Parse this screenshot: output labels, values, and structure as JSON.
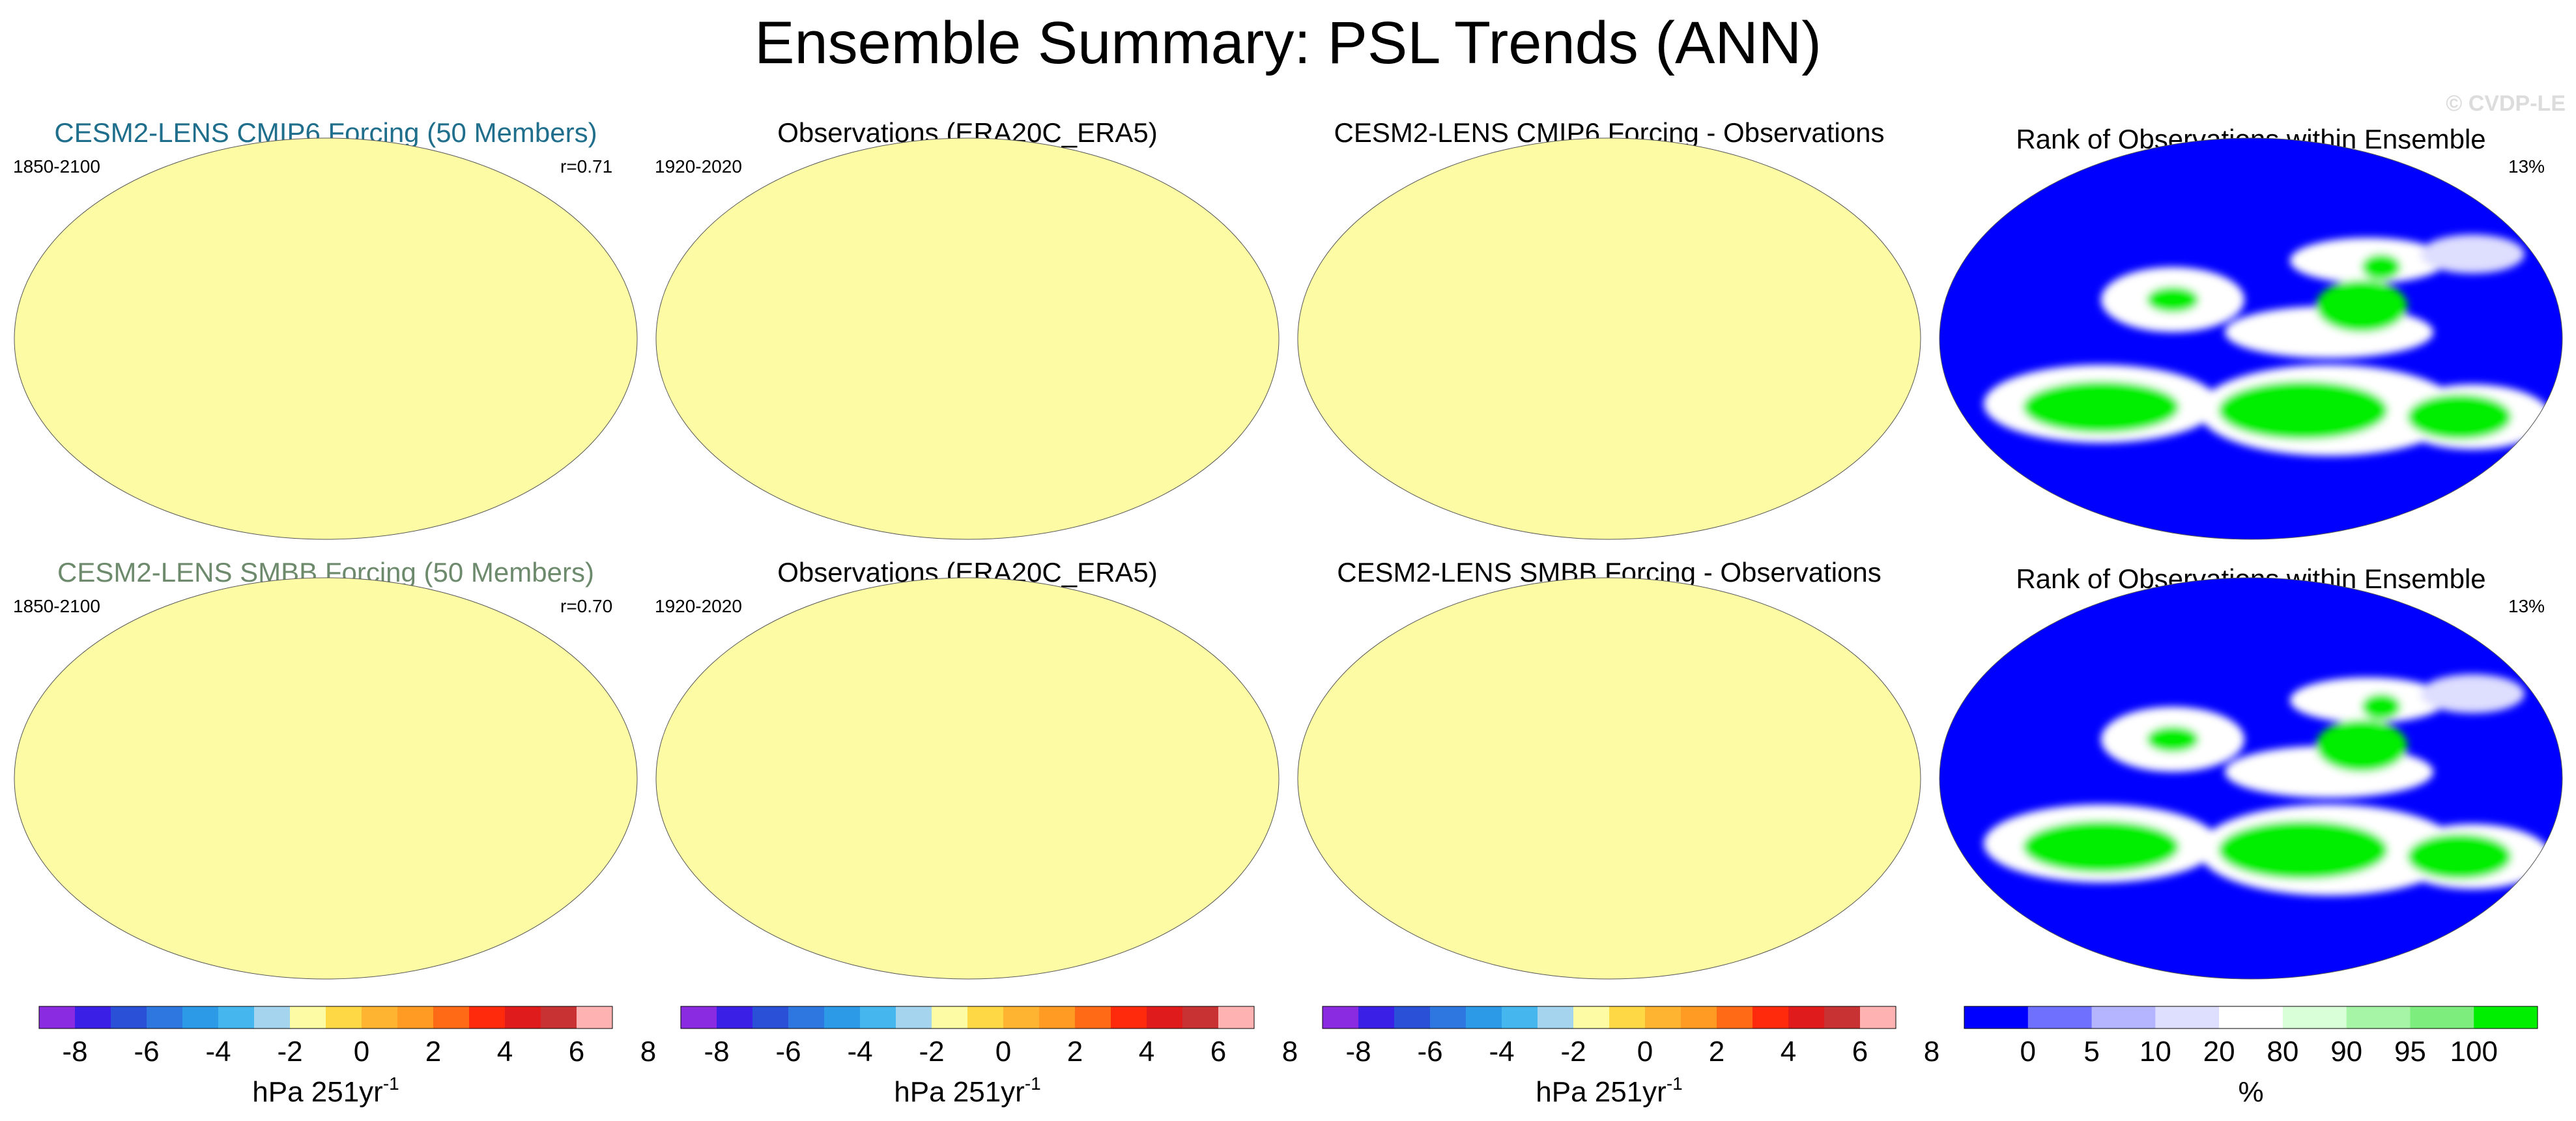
{
  "title": "Ensemble Summary: PSL Trends (ANN)",
  "watermark": "© CVDP-LE",
  "colors": {
    "trend_scale": [
      "#8a2be2",
      "#3a1fe6",
      "#2a50d8",
      "#2f77e0",
      "#2d9ae8",
      "#46b7ee",
      "#a5d4ef",
      "#fdfca5",
      "#ffd845",
      "#ffb431",
      "#ff9b22",
      "#ff6a16",
      "#ff2a0c",
      "#e01b1b",
      "#c83232",
      "#ffb2b2"
    ],
    "rank_scale": [
      "#0000ff",
      "#7070ff",
      "#b4b4ff",
      "#dedeff",
      "#ffffff",
      "#d9ffd9",
      "#a6f5a6",
      "#7ded7d",
      "#00ee00"
    ],
    "title_cmip6": "#1f6e8c",
    "title_smbb": "#6d8a6d"
  },
  "rows": [
    {
      "panels": [
        {
          "title": "CESM2-LENS CMIP6 Forcing (50 Members)",
          "left": "1850-2100",
          "right": "r=0.71",
          "map": "model"
        },
        {
          "title": "Observations (ERA20C_ERA5)",
          "left": "1920-2020",
          "right": "",
          "map": "obs"
        },
        {
          "title": "CESM2-LENS CMIP6 Forcing - Observations",
          "left": "",
          "right": "",
          "map": "diff"
        },
        {
          "title": "Rank of Observations within Ensemble",
          "left": "",
          "right": "13%",
          "map": "rank"
        }
      ]
    },
    {
      "panels": [
        {
          "title": "CESM2-LENS SMBB Forcing (50 Members)",
          "left": "1850-2100",
          "right": "r=0.70",
          "map": "model"
        },
        {
          "title": "Observations (ERA20C_ERA5)",
          "left": "1920-2020",
          "right": "",
          "map": "obs"
        },
        {
          "title": "CESM2-LENS SMBB Forcing - Observations",
          "left": "",
          "right": "",
          "map": "diff"
        },
        {
          "title": "Rank of Observations within Ensemble",
          "left": "",
          "right": "13%",
          "map": "rank"
        }
      ]
    }
  ],
  "colorbars": [
    {
      "ticks": [
        "-8",
        "-6",
        "-4",
        "-2",
        "0",
        "2",
        "4",
        "6",
        "8"
      ],
      "unit_main": "hPa 251yr",
      "unit_sup": "-1"
    },
    {
      "ticks": [
        "-8",
        "-6",
        "-4",
        "-2",
        "0",
        "2",
        "4",
        "6",
        "8"
      ],
      "unit_main": "hPa 251yr",
      "unit_sup": "-1"
    },
    {
      "ticks": [
        "-8",
        "-6",
        "-4",
        "-2",
        "0",
        "2",
        "4",
        "6",
        "8"
      ],
      "unit_main": "hPa 251yr",
      "unit_sup": "-1"
    },
    {
      "ticks": [
        "0",
        "5",
        "10",
        "20",
        "80",
        "90",
        "95",
        "100"
      ],
      "unit_main": "%",
      "unit_sup": ""
    }
  ],
  "chart_data": {
    "type": "heatmap",
    "title": "Ensemble Summary: PSL Trends (ANN)",
    "panels": [
      {
        "row": 1,
        "col": 1,
        "title": "CESM2-LENS CMIP6 Forcing (50 Members)",
        "period": "1850-2100",
        "pattern_correlation": 0.71
      },
      {
        "row": 1,
        "col": 2,
        "title": "Observations (ERA20C_ERA5)",
        "period": "1920-2020"
      },
      {
        "row": 1,
        "col": 3,
        "title": "CESM2-LENS CMIP6 Forcing - Observations"
      },
      {
        "row": 1,
        "col": 4,
        "title": "Rank of Observations within Ensemble",
        "percent": "13%"
      },
      {
        "row": 2,
        "col": 1,
        "title": "CESM2-LENS SMBB Forcing (50 Members)",
        "period": "1850-2100",
        "pattern_correlation": 0.7
      },
      {
        "row": 2,
        "col": 2,
        "title": "Observations (ERA20C_ERA5)",
        "period": "1920-2020"
      },
      {
        "row": 2,
        "col": 3,
        "title": "CESM2-LENS SMBB Forcing - Observations"
      },
      {
        "row": 2,
        "col": 4,
        "title": "Rank of Observations within Ensemble",
        "percent": "13%"
      }
    ],
    "trend_levels": [
      -8,
      -6,
      -4,
      -2,
      0,
      2,
      4,
      6,
      8
    ],
    "trend_unit": "hPa 251yr-1",
    "rank_levels": [
      0,
      5,
      10,
      20,
      80,
      90,
      95,
      100
    ],
    "rank_unit": "%"
  }
}
